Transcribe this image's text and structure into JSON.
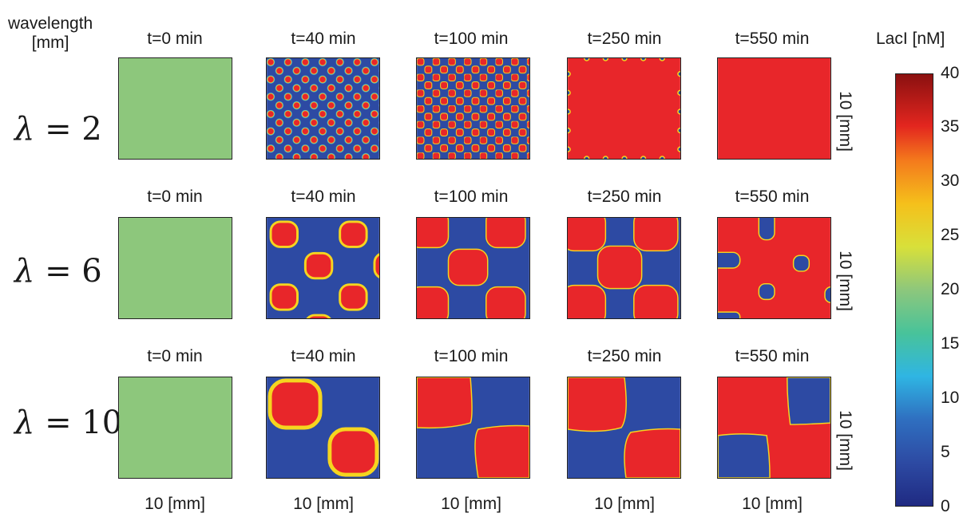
{
  "header": {
    "wavelength_label": "wavelength",
    "wavelength_unit": "[mm]",
    "colorbar_title": "LacI [nM]"
  },
  "time_labels": [
    "t=0 min",
    "t=40 min",
    "t=100 min",
    "t=250 min",
    "t=550 min"
  ],
  "rows": [
    {
      "lambda_symbol": "λ = ",
      "lambda_value": "2"
    },
    {
      "lambda_symbol": "λ = ",
      "lambda_value": "6"
    },
    {
      "lambda_symbol": "λ = ",
      "lambda_value": "10"
    }
  ],
  "axis_labels": {
    "y_size": "10 [mm]",
    "x_size": "10 [mm]"
  },
  "colorbar": {
    "ticks": [
      "40",
      "35",
      "30",
      "25",
      "20",
      "15",
      "10",
      "5",
      "0"
    ],
    "min": 0,
    "max": 40
  },
  "colors": {
    "green": "#8dc77c",
    "blue": "#2d4aa3",
    "red": "#e8262a",
    "ring": "#f5d51f"
  }
}
